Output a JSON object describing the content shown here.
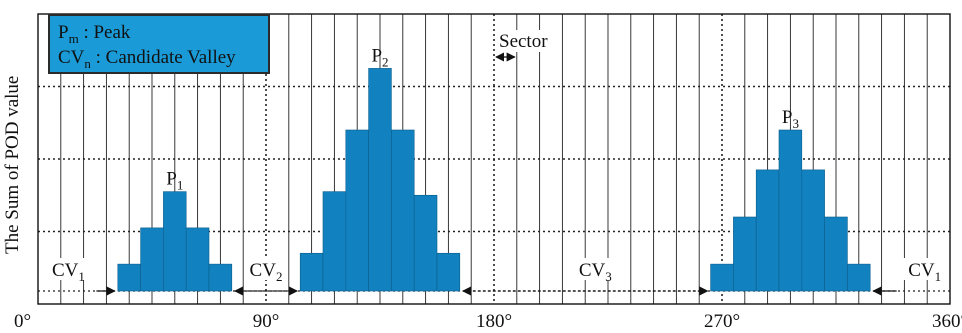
{
  "legend": {
    "peak_symbol": "P",
    "peak_sub": "m",
    "peak_text": " : Peak",
    "valley_symbol": "CV",
    "valley_sub": "n",
    "valley_text": " : Candidate Valley"
  },
  "chart_data": {
    "type": "bar",
    "ylabel": "The Sum of POD value",
    "xlim": [
      0,
      360
    ],
    "ylim": [
      0,
      4
    ],
    "x_ticks": [
      "0°",
      "90°",
      "180°",
      "270°",
      "360°"
    ],
    "sector_width_deg": 9,
    "bars": [
      {
        "center": 36,
        "value": 0.55
      },
      {
        "center": 45,
        "value": 1.05
      },
      {
        "center": 54,
        "value": 1.55
      },
      {
        "center": 63,
        "value": 1.05
      },
      {
        "center": 72,
        "value": 0.55
      },
      {
        "center": 108,
        "value": 0.7
      },
      {
        "center": 117,
        "value": 1.55
      },
      {
        "center": 126,
        "value": 2.4
      },
      {
        "center": 135,
        "value": 3.25
      },
      {
        "center": 144,
        "value": 2.4
      },
      {
        "center": 153,
        "value": 1.5
      },
      {
        "center": 162,
        "value": 0.7
      },
      {
        "center": 270,
        "value": 0.55
      },
      {
        "center": 279,
        "value": 1.2
      },
      {
        "center": 288,
        "value": 1.85
      },
      {
        "center": 297,
        "value": 2.4
      },
      {
        "center": 306,
        "value": 1.85
      },
      {
        "center": 315,
        "value": 1.2
      },
      {
        "center": 324,
        "value": 0.55
      }
    ],
    "peaks": [
      {
        "label": "P",
        "sub": "1",
        "x": 54
      },
      {
        "label": "P",
        "sub": "2",
        "x": 135
      },
      {
        "label": "P",
        "sub": "3",
        "x": 297
      }
    ],
    "valleys": [
      {
        "label": "CV",
        "sub": "1",
        "x": 12,
        "start": 0,
        "end": 31.5
      },
      {
        "label": "CV",
        "sub": "2",
        "x": 90,
        "start": 76.5,
        "end": 103.5
      },
      {
        "label": "CV",
        "sub": "3",
        "x": 220,
        "start": 166.5,
        "end": 265.5
      },
      {
        "label": "CV",
        "sub": "1",
        "x": 350,
        "start": 328.5,
        "end": 360
      }
    ],
    "sector_label": "Sector",
    "grid": true
  }
}
